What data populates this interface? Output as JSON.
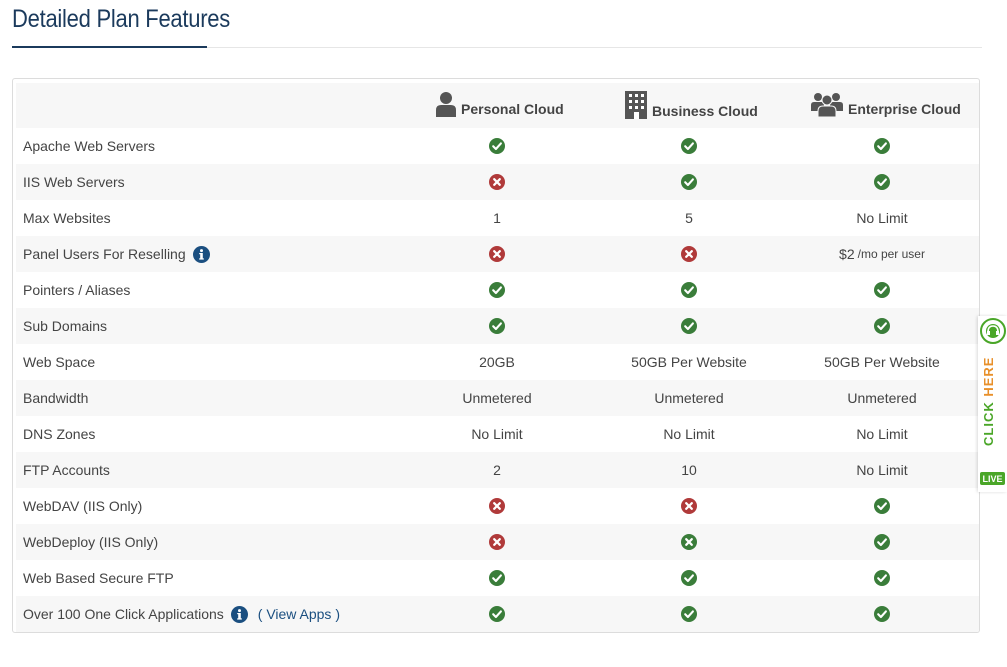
{
  "page": {
    "title": "Detailed Plan Features"
  },
  "colors": {
    "title": "#1b3a5c",
    "check": "#3a7d3a",
    "cross": "#b03a3a",
    "info": "#1b4f80",
    "live": "#4aa628",
    "click_here": "#e8902a"
  },
  "plans": [
    {
      "name": "Personal Cloud",
      "icon": "person-icon"
    },
    {
      "name": "Business Cloud",
      "icon": "building-icon"
    },
    {
      "name": "Enterprise Cloud",
      "icon": "group-icon"
    }
  ],
  "rows": [
    {
      "feature": "Apache Web Servers",
      "values": [
        {
          "type": "check"
        },
        {
          "type": "check"
        },
        {
          "type": "check"
        }
      ]
    },
    {
      "feature": "IIS Web Servers",
      "values": [
        {
          "type": "cross"
        },
        {
          "type": "check"
        },
        {
          "type": "check"
        }
      ]
    },
    {
      "feature": "Max Websites",
      "values": [
        {
          "type": "text",
          "text": "1"
        },
        {
          "type": "text",
          "text": "5"
        },
        {
          "type": "text",
          "text": "No Limit"
        }
      ]
    },
    {
      "feature": "Panel Users For Reselling",
      "info": true,
      "values": [
        {
          "type": "cross"
        },
        {
          "type": "cross"
        },
        {
          "type": "text",
          "text": "$2",
          "small": "/mo per user"
        }
      ]
    },
    {
      "feature": "Pointers / Aliases",
      "values": [
        {
          "type": "check"
        },
        {
          "type": "check"
        },
        {
          "type": "check"
        }
      ]
    },
    {
      "feature": "Sub Domains",
      "values": [
        {
          "type": "check"
        },
        {
          "type": "check"
        },
        {
          "type": "check"
        }
      ]
    },
    {
      "feature": "Web Space",
      "values": [
        {
          "type": "text",
          "text": "20GB"
        },
        {
          "type": "text",
          "text": "50GB Per Website"
        },
        {
          "type": "text",
          "text": "50GB Per Website"
        }
      ]
    },
    {
      "feature": "Bandwidth",
      "values": [
        {
          "type": "text",
          "text": "Unmetered"
        },
        {
          "type": "text",
          "text": "Unmetered"
        },
        {
          "type": "text",
          "text": "Unmetered"
        }
      ]
    },
    {
      "feature": "DNS Zones",
      "values": [
        {
          "type": "text",
          "text": "No Limit"
        },
        {
          "type": "text",
          "text": "No Limit"
        },
        {
          "type": "text",
          "text": "No Limit"
        }
      ]
    },
    {
      "feature": "FTP Accounts",
      "values": [
        {
          "type": "text",
          "text": "2"
        },
        {
          "type": "text",
          "text": "10"
        },
        {
          "type": "text",
          "text": "No Limit"
        }
      ]
    },
    {
      "feature": "WebDAV (IIS Only)",
      "values": [
        {
          "type": "cross"
        },
        {
          "type": "cross"
        },
        {
          "type": "check"
        }
      ]
    },
    {
      "feature": "WebDeploy (IIS Only)",
      "values": [
        {
          "type": "cross"
        },
        {
          "type": "xgreen"
        },
        {
          "type": "check"
        }
      ]
    },
    {
      "feature": "Web Based Secure FTP",
      "values": [
        {
          "type": "check"
        },
        {
          "type": "check"
        },
        {
          "type": "check"
        }
      ]
    },
    {
      "feature": "Over 100 One Click Applications",
      "info": true,
      "link": "( View Apps )",
      "values": [
        {
          "type": "check"
        },
        {
          "type": "check"
        },
        {
          "type": "check"
        }
      ]
    }
  ],
  "live_chat": {
    "click_part1": "CLICK ",
    "click_part2": "HERE",
    "badge": "LIVE"
  }
}
